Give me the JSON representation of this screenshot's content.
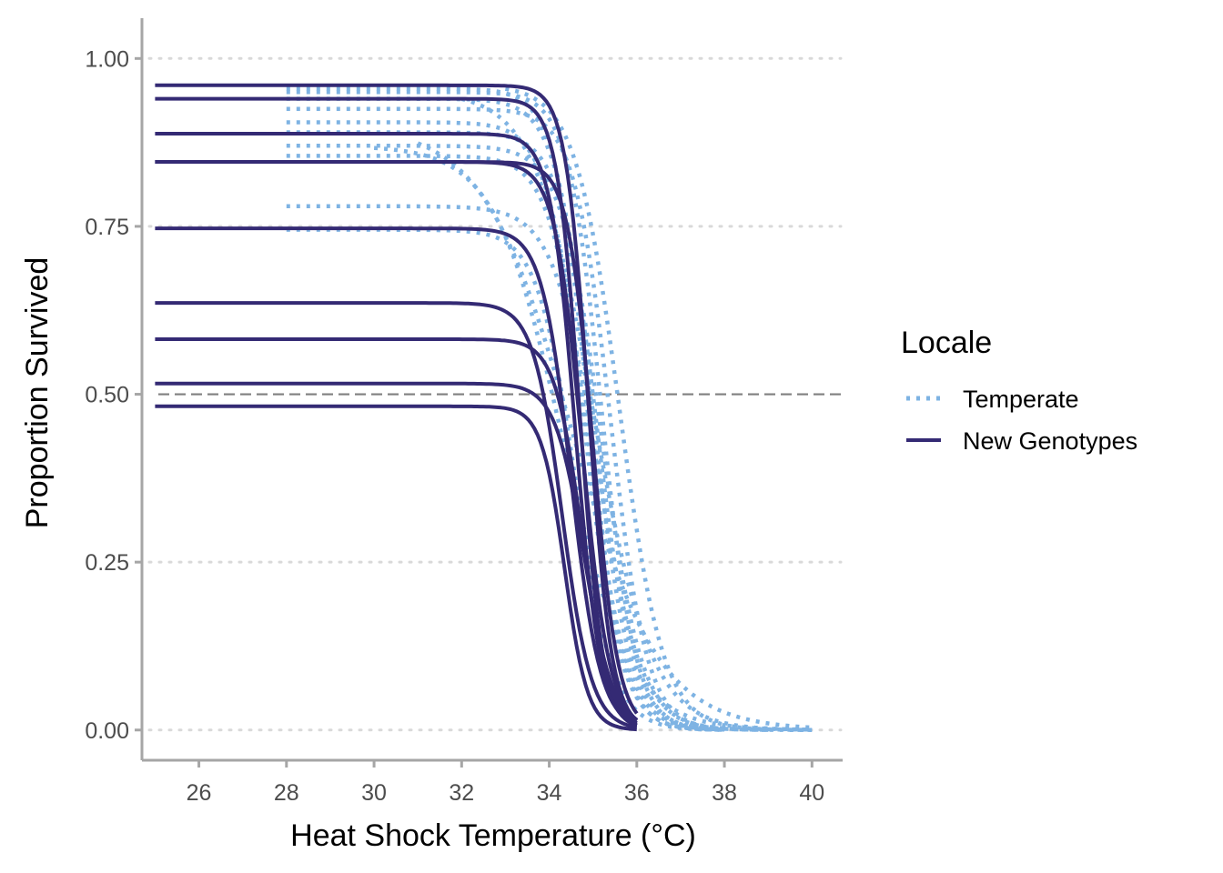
{
  "chart_data": {
    "type": "line",
    "xlabel": "Heat Shock Temperature (°C)",
    "ylabel": "Proportion Survived",
    "xlim": [
      24.7,
      40.7
    ],
    "ylim": [
      -0.045,
      1.06
    ],
    "xticks": [
      26,
      28,
      30,
      32,
      34,
      36,
      38,
      40
    ],
    "xtick_labels": [
      "26",
      "28",
      "30",
      "32",
      "34",
      "36",
      "38",
      "40"
    ],
    "yticks": [
      0,
      0.25,
      0.5,
      0.75,
      1
    ],
    "ytick_labels": [
      "0.00",
      "0.25",
      "0.50",
      "0.75",
      "1.00"
    ],
    "grid": "horizontal dotted",
    "reference_line": {
      "y": 0.5,
      "style": "dashed"
    },
    "legend": {
      "title": "Locale",
      "position": "right",
      "entries": [
        {
          "label": "Temperate",
          "style": "dotted",
          "color": "#7eb3e3"
        },
        {
          "label": "New Genotypes",
          "style": "solid",
          "color": "#342a74"
        }
      ]
    },
    "colors": {
      "temperate": "#7eb3e3",
      "new_genotypes": "#342a74",
      "grid": "#d9d9d9",
      "axis": "#a6a6a6",
      "reference": "#7f7f7f"
    },
    "series": [
      {
        "group": "New Genotypes",
        "x_range": [
          25,
          36
        ],
        "top": 0.96,
        "t50": 34.9,
        "slope": 3.8
      },
      {
        "group": "New Genotypes",
        "x_range": [
          25,
          36
        ],
        "top": 0.94,
        "t50": 34.7,
        "slope": 3.8
      },
      {
        "group": "New Genotypes",
        "x_range": [
          25,
          36
        ],
        "top": 0.888,
        "t50": 34.6,
        "slope": 3.5
      },
      {
        "group": "New Genotypes",
        "x_range": [
          25,
          36
        ],
        "top": 0.846,
        "t50": 35.0,
        "slope": 3.5
      },
      {
        "group": "New Genotypes",
        "x_range": [
          25,
          36
        ],
        "top": 0.846,
        "t50": 34.75,
        "slope": 3.2
      },
      {
        "group": "New Genotypes",
        "x_range": [
          25,
          36
        ],
        "top": 0.747,
        "t50": 34.5,
        "slope": 3.0
      },
      {
        "group": "New Genotypes",
        "x_range": [
          25,
          36
        ],
        "top": 0.636,
        "t50": 34.3,
        "slope": 3.0
      },
      {
        "group": "New Genotypes",
        "x_range": [
          25,
          36
        ],
        "top": 0.582,
        "t50": 34.75,
        "slope": 3.2
      },
      {
        "group": "New Genotypes",
        "x_range": [
          25,
          36
        ],
        "top": 0.516,
        "t50": 34.8,
        "slope": 3.0
      },
      {
        "group": "New Genotypes",
        "x_range": [
          25,
          36
        ],
        "top": 0.482,
        "t50": 34.35,
        "slope": 3.8
      },
      {
        "group": "Temperate",
        "x_range": [
          28,
          38
        ],
        "top": 0.955,
        "t50": 34.9,
        "slope": 2.6
      },
      {
        "group": "Temperate",
        "x_range": [
          28,
          38
        ],
        "top": 0.95,
        "t50": 35.2,
        "slope": 2.6
      },
      {
        "group": "Temperate",
        "x_range": [
          28,
          38
        ],
        "top": 0.94,
        "t50": 35.0,
        "slope": 2.4
      },
      {
        "group": "Temperate",
        "x_range": [
          28,
          39
        ],
        "top": 0.925,
        "t50": 35.4,
        "slope": 2.4
      },
      {
        "group": "Temperate",
        "x_range": [
          28,
          38
        ],
        "top": 0.905,
        "t50": 34.8,
        "slope": 2.4
      },
      {
        "group": "Temperate",
        "x_range": [
          28,
          38
        ],
        "top": 0.89,
        "t50": 35.1,
        "slope": 2.4
      },
      {
        "group": "Temperate",
        "x_range": [
          28,
          39
        ],
        "top": 0.87,
        "t50": 35.2,
        "slope": 2.2
      },
      {
        "group": "Temperate",
        "x_range": [
          28,
          38
        ],
        "top": 0.855,
        "t50": 34.9,
        "slope": 2.3
      },
      {
        "group": "Temperate",
        "x_range": [
          28,
          40
        ],
        "top": 0.78,
        "t50": 35.1,
        "slope": 2.0
      },
      {
        "group": "Temperate",
        "x_range": [
          28,
          38
        ],
        "top": 0.745,
        "t50": 34.6,
        "slope": 2.3
      },
      {
        "group": "Temperate",
        "x_range": [
          30,
          40
        ],
        "top": 0.87,
        "t50": 34.3,
        "slope": 1.3
      },
      {
        "group": "Temperate",
        "x_range": [
          31,
          40
        ],
        "top": 0.9,
        "t50": 34.5,
        "slope": 1.0
      },
      {
        "group": "Temperate",
        "x_range": [
          32,
          40
        ],
        "top": 0.95,
        "t50": 35.0,
        "slope": 1.5
      },
      {
        "group": "Temperate",
        "x_range": [
          33,
          40
        ],
        "top": 0.96,
        "t50": 35.6,
        "slope": 2.0
      }
    ]
  }
}
